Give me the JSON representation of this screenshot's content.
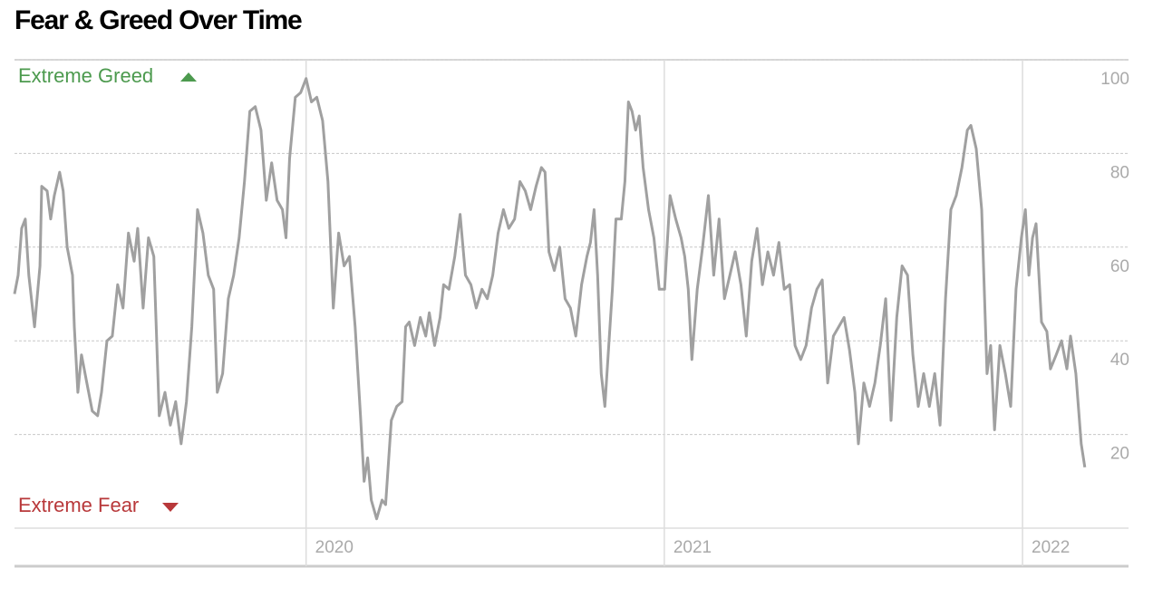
{
  "chart_data": {
    "type": "line",
    "title": "Fear & Greed Over Time",
    "annotations": [
      "Extreme Greed",
      "Extreme Fear"
    ],
    "color": "#a0a0a0",
    "xlim": [
      2019.186,
      2022.296
    ],
    "xticks": [
      2020,
      2021,
      2022
    ],
    "ylim": [
      0,
      100
    ],
    "yticks": [
      20,
      40,
      60,
      80,
      100
    ],
    "grid": true,
    "x": [
      2019.186,
      2019.196,
      2019.206,
      2019.216,
      2019.226,
      2019.242,
      2019.257,
      2019.262,
      2019.277,
      2019.287,
      2019.297,
      2019.312,
      2019.322,
      2019.333,
      2019.348,
      2019.353,
      2019.363,
      2019.373,
      2019.388,
      2019.403,
      2019.418,
      2019.429,
      2019.444,
      2019.459,
      2019.474,
      2019.489,
      2019.504,
      2019.52,
      2019.53,
      2019.545,
      2019.56,
      2019.575,
      2019.59,
      2019.606,
      2019.621,
      2019.636,
      2019.651,
      2019.666,
      2019.681,
      2019.697,
      2019.712,
      2019.727,
      2019.742,
      2019.752,
      2019.767,
      2019.783,
      2019.798,
      2019.813,
      2019.828,
      2019.843,
      2019.858,
      2019.874,
      2019.889,
      2019.904,
      2019.919,
      2019.934,
      2019.944,
      2019.954,
      2019.97,
      2019.985,
      2020.0,
      2020.015,
      2020.03,
      2020.046,
      2020.061,
      2020.076,
      2020.091,
      2020.106,
      2020.121,
      2020.137,
      2020.152,
      2020.162,
      2020.172,
      2020.182,
      2020.197,
      2020.212,
      2020.222,
      2020.238,
      2020.253,
      2020.268,
      2020.278,
      2020.288,
      2020.303,
      2020.319,
      2020.334,
      2020.344,
      2020.359,
      2020.374,
      2020.384,
      2020.399,
      2020.415,
      2020.43,
      2020.445,
      2020.46,
      2020.475,
      2020.491,
      2020.506,
      2020.521,
      2020.536,
      2020.551,
      2020.566,
      2020.582,
      2020.597,
      2020.612,
      2020.627,
      2020.642,
      2020.657,
      2020.667,
      2020.678,
      2020.693,
      2020.708,
      2020.723,
      2020.738,
      2020.753,
      2020.769,
      2020.784,
      2020.794,
      2020.804,
      2020.814,
      2020.824,
      2020.834,
      2020.845,
      2020.855,
      2020.865,
      2020.88,
      2020.89,
      2020.9,
      2020.91,
      2020.92,
      2020.93,
      2020.941,
      2020.956,
      2020.971,
      2020.986,
      2021.001,
      2021.016,
      2021.032,
      2021.047,
      2021.057,
      2021.067,
      2021.077,
      2021.092,
      2021.107,
      2021.123,
      2021.138,
      2021.153,
      2021.168,
      2021.183,
      2021.198,
      2021.214,
      2021.229,
      2021.244,
      2021.259,
      2021.274,
      2021.289,
      2021.305,
      2021.32,
      2021.335,
      2021.35,
      2021.365,
      2021.381,
      2021.396,
      2021.411,
      2021.426,
      2021.441,
      2021.456,
      2021.472,
      2021.487,
      2021.502,
      2021.517,
      2021.532,
      2021.542,
      2021.557,
      2021.573,
      2021.588,
      2021.603,
      2021.618,
      2021.633,
      2021.649,
      2021.664,
      2021.679,
      2021.694,
      2021.709,
      2021.724,
      2021.74,
      2021.755,
      2021.77,
      2021.785,
      2021.8,
      2021.815,
      2021.831,
      2021.846,
      2021.856,
      2021.871,
      2021.886,
      2021.901,
      2021.911,
      2021.922,
      2021.937,
      2021.952,
      2021.967,
      2021.982,
      2021.997,
      2022.008,
      2022.018,
      2022.028,
      2022.038,
      2022.053,
      2022.068,
      2022.078,
      2022.094,
      2022.109,
      2022.124,
      2022.134,
      2022.149,
      2022.164,
      2022.174
    ],
    "values": [
      50,
      54,
      64,
      66,
      54,
      43,
      56,
      73,
      72,
      66,
      71,
      76,
      72,
      60,
      54,
      43,
      29,
      37,
      31,
      25,
      24,
      29,
      40,
      41,
      52,
      47,
      63,
      57,
      64,
      47,
      62,
      58,
      24,
      29,
      22,
      27,
      18,
      27,
      43,
      68,
      63,
      54,
      51,
      29,
      33,
      49,
      54,
      62,
      74,
      89,
      90,
      85,
      70,
      78,
      70,
      68,
      62,
      79,
      92,
      93,
      96,
      91,
      92,
      87,
      74,
      47,
      63,
      56,
      58,
      43,
      24,
      10,
      15,
      6,
      2,
      6,
      5,
      23,
      26,
      27,
      43,
      44,
      39,
      45,
      41,
      46,
      39,
      45,
      52,
      51,
      58,
      67,
      54,
      52,
      47,
      51,
      49,
      54,
      63,
      68,
      64,
      66,
      74,
      72,
      68,
      73,
      77,
      76,
      59,
      55,
      60,
      49,
      47,
      41,
      52,
      58,
      61,
      68,
      54,
      33,
      26,
      39,
      51,
      66,
      66,
      74,
      91,
      89,
      85,
      88,
      77,
      68,
      62,
      51,
      51,
      71,
      66,
      62,
      58,
      51,
      36,
      51,
      60,
      71,
      54,
      66,
      49,
      54,
      59,
      52,
      41,
      57,
      64,
      52,
      59,
      54,
      61,
      51,
      52,
      39,
      36,
      39,
      47,
      51,
      53,
      31,
      41,
      43,
      45,
      38,
      29,
      18,
      31,
      26,
      31,
      39,
      49,
      23,
      45,
      56,
      54,
      37,
      26,
      33,
      26,
      33,
      22,
      49,
      68,
      71,
      77,
      85,
      86,
      81,
      68,
      33,
      39,
      21,
      39,
      33,
      26,
      51,
      62,
      68,
      54,
      62,
      65,
      44,
      42,
      34,
      37,
      40,
      34,
      41,
      33,
      18,
      13
    ]
  }
}
